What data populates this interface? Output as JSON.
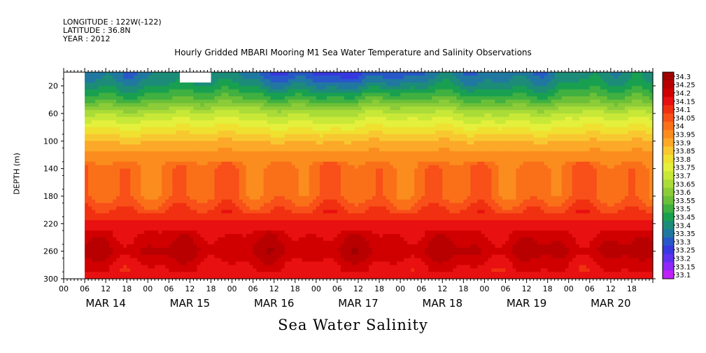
{
  "header": {
    "longitude": "LONGITUDE : 122W(-122)",
    "latitude": "LATITUDE : 36.8N",
    "year": "YEAR : 2012"
  },
  "title": "Hourly Gridded MBARI Mooring M1 Sea Water Temperature and Salinity Observations",
  "bottom_title": "Sea Water Salinity",
  "chart_data": {
    "type": "heatmap",
    "title": "Hourly Gridded MBARI Mooring M1 Sea Water Temperature and Salinity Observations",
    "subtitle": "Sea Water Salinity",
    "ylabel": "DEPTH (m)",
    "xlabel": "",
    "ylim": [
      300,
      0
    ],
    "y_ticks": [
      20,
      60,
      100,
      140,
      180,
      220,
      260,
      300
    ],
    "x_day_labels": [
      "MAR 14",
      "MAR 15",
      "MAR 16",
      "MAR 17",
      "MAR 18",
      "MAR 19",
      "MAR 20"
    ],
    "x_hour_labels": [
      "00",
      "06",
      "12",
      "18"
    ],
    "x_range_hours": [
      0,
      168
    ],
    "data_start_hour": 6,
    "missing_block_hours": [
      33,
      42
    ],
    "missing_block_depth": [
      0,
      14
    ],
    "colorbar_levels": [
      "34.3",
      "34.25",
      "34.2",
      "34.15",
      "34.1",
      "34.05",
      "34",
      "33.95",
      "33.9",
      "33.85",
      "33.8",
      "33.75",
      "33.7",
      "33.65",
      "33.6",
      "33.55",
      "33.5",
      "33.45",
      "33.4",
      "33.35",
      "33.3",
      "33.25",
      "33.2",
      "33.15",
      "33.1"
    ],
    "colorbar_colors": [
      "#a00000",
      "#b80000",
      "#d00000",
      "#e81010",
      "#f03010",
      "#f85018",
      "#fa7018",
      "#fb8c1e",
      "#fca828",
      "#f8c830",
      "#f0e030",
      "#e4f03c",
      "#c8e838",
      "#aadc38",
      "#8ccc38",
      "#6cc038",
      "#40b040",
      "#18a050",
      "#1c8c78",
      "#2078a0",
      "#2858c8",
      "#3838e0",
      "#6030f0",
      "#9028f8",
      "#c020f8"
    ],
    "profile_depth_m": [
      5,
      20,
      40,
      60,
      80,
      100,
      120,
      140,
      180,
      220,
      240,
      260,
      280,
      300
    ],
    "profile_salinity": [
      33.4,
      33.45,
      33.55,
      33.7,
      33.8,
      33.9,
      33.97,
      34.03,
      34.03,
      34.17,
      34.22,
      34.26,
      34.2,
      34.17
    ],
    "grid": false
  }
}
